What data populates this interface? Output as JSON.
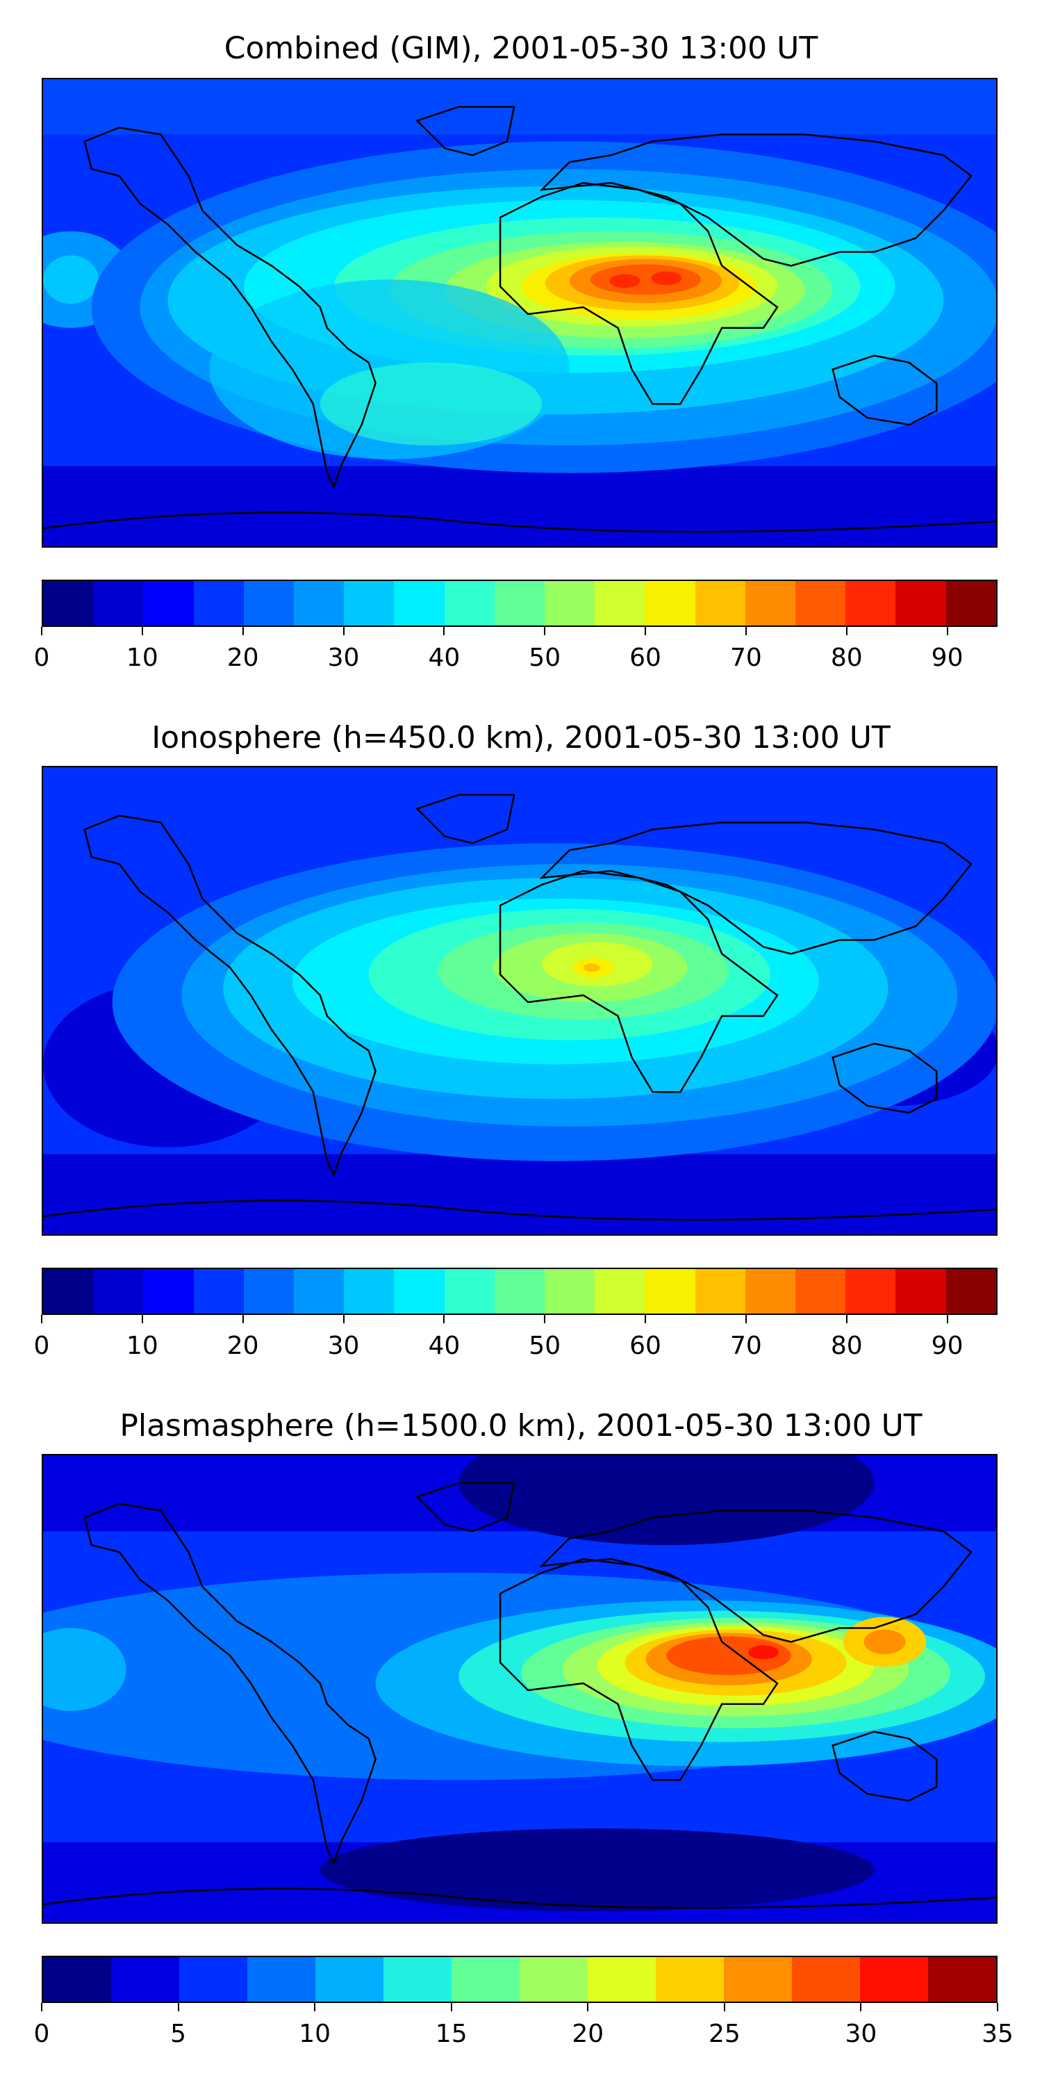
{
  "panels": [
    {
      "title": "Combined (GIM), 2001-05-30 13:00 UT",
      "colorbar": {
        "min": 0,
        "max": 95,
        "step": 5,
        "tick_labels": [
          "0",
          "10",
          "20",
          "30",
          "40",
          "50",
          "60",
          "70",
          "80",
          "90"
        ],
        "tick_values": [
          0,
          10,
          20,
          30,
          40,
          50,
          60,
          70,
          80,
          90
        ],
        "colors": [
          "#00008b",
          "#0000d0",
          "#0000ff",
          "#0036ff",
          "#0068ff",
          "#0096ff",
          "#00c8ff",
          "#00f0ff",
          "#30ffd0",
          "#60ff98",
          "#98ff60",
          "#d0ff30",
          "#f8f000",
          "#ffc000",
          "#ff8c00",
          "#ff5a00",
          "#ff2800",
          "#d80000",
          "#8b0000"
        ]
      }
    },
    {
      "title": "Ionosphere  (h=450.0 km), 2001-05-30 13:00 UT",
      "colorbar": {
        "min": 0,
        "max": 95,
        "step": 5,
        "tick_labels": [
          "0",
          "10",
          "20",
          "30",
          "40",
          "50",
          "60",
          "70",
          "80",
          "90"
        ],
        "tick_values": [
          0,
          10,
          20,
          30,
          40,
          50,
          60,
          70,
          80,
          90
        ],
        "colors": [
          "#00008b",
          "#0000d0",
          "#0000ff",
          "#0036ff",
          "#0068ff",
          "#0096ff",
          "#00c8ff",
          "#00f0ff",
          "#30ffd0",
          "#60ff98",
          "#98ff60",
          "#d0ff30",
          "#f8f000",
          "#ffc000",
          "#ff8c00",
          "#ff5a00",
          "#ff2800",
          "#d80000",
          "#8b0000"
        ]
      }
    },
    {
      "title": "Plasmasphere (h=1500.0 km), 2001-05-30 13:00 UT",
      "colorbar": {
        "min": 0,
        "max": 35,
        "step": 2.5,
        "tick_labels": [
          "0",
          "5",
          "10",
          "15",
          "20",
          "25",
          "30",
          "35"
        ],
        "tick_values": [
          0,
          5,
          10,
          15,
          20,
          25,
          30,
          35
        ],
        "colors": [
          "#00008b",
          "#0000e0",
          "#0030ff",
          "#0070ff",
          "#00b0ff",
          "#20f0e0",
          "#60ff98",
          "#a0ff60",
          "#e0ff20",
          "#ffd000",
          "#ff9000",
          "#ff5000",
          "#ff1000",
          "#a00000"
        ]
      }
    }
  ]
}
